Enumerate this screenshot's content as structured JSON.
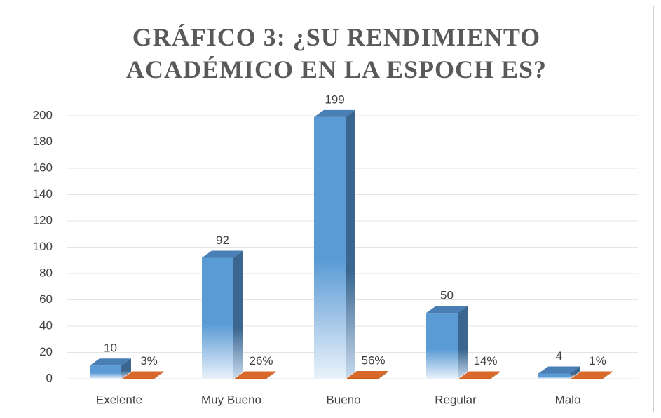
{
  "chart_data": {
    "type": "bar3d",
    "title": "GRÁFICO 3: ¿SU RENDIMIENTO ACADÉMICO EN LA ESPOCH ES?",
    "categories": [
      "Exelente",
      "Muy Bueno",
      "Bueno",
      "Regular",
      "Malo"
    ],
    "series": [
      {
        "color": "#5b9bd5",
        "values": [
          10,
          92,
          199,
          50,
          4
        ]
      },
      {
        "color": "#c55a11",
        "values": [
          0.03,
          0.26,
          0.56,
          0.14,
          0.01
        ],
        "value_labels": [
          "3%",
          "26%",
          "56%",
          "14%",
          "1%"
        ]
      }
    ],
    "ylim": [
      0,
      200
    ],
    "yticks": [
      0,
      20,
      40,
      60,
      80,
      100,
      120,
      140,
      160,
      180,
      200
    ],
    "grid": true
  }
}
